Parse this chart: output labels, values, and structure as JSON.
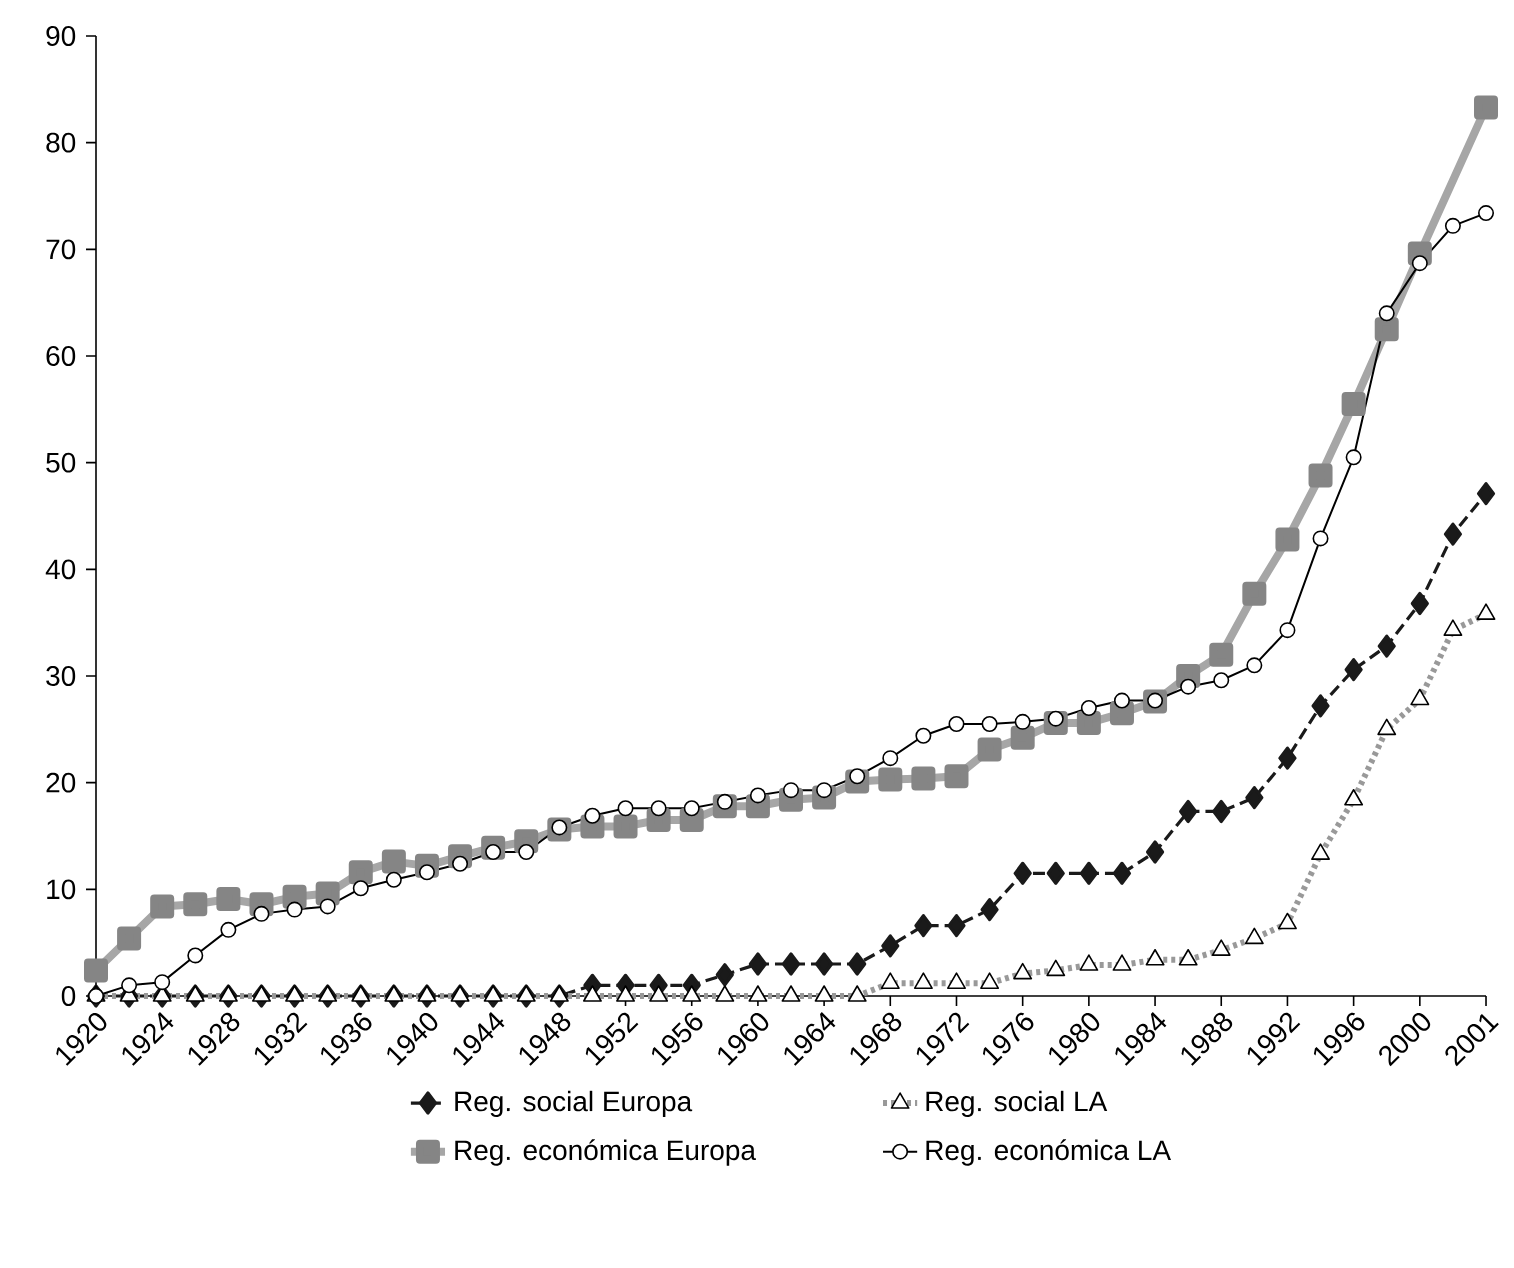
{
  "chart_data": {
    "type": "line",
    "categories": [
      "1920",
      null,
      "1924",
      null,
      "1928",
      null,
      "1932",
      null,
      "1936",
      null,
      "1940",
      null,
      "1944",
      null,
      "1948",
      null,
      "1952",
      null,
      "1956",
      null,
      "1960",
      null,
      "1964",
      null,
      "1968",
      null,
      "1972",
      null,
      "1976",
      null,
      "1980",
      null,
      "1984",
      null,
      "1988",
      null,
      "1992",
      null,
      "1996",
      null,
      "2000",
      null,
      "2001"
    ],
    "ylim": [
      0,
      90
    ],
    "yticks": [
      0,
      10,
      20,
      30,
      40,
      50,
      60,
      70,
      80,
      90
    ],
    "legend": "bottom",
    "series": [
      {
        "name": "Reg. social Europa",
        "color": "#1a1a1a",
        "marker": "diamond",
        "line_style": "dashed",
        "values": [
          0,
          0,
          0,
          0,
          0,
          0,
          0,
          0,
          0,
          0,
          0,
          0,
          0,
          0,
          0,
          1,
          1,
          1,
          1,
          2,
          3,
          3,
          3,
          3,
          4.7,
          6.6,
          6.6,
          8.1,
          11.5,
          11.5,
          11.5,
          11.5,
          13.5,
          17.3,
          17.3,
          18.6,
          22.3,
          27.2,
          30.6,
          32.8,
          36.8,
          43.3,
          47.1
        ]
      },
      {
        "name": "Reg. social LA",
        "color": "#999999",
        "marker": "triangle",
        "line_style": "dotted",
        "values": [
          0,
          0,
          0,
          0,
          0,
          0,
          0,
          0,
          0,
          0,
          0,
          0,
          0,
          0,
          0,
          0,
          0,
          0,
          0,
          0,
          0,
          0,
          0,
          0,
          1.2,
          1.2,
          1.2,
          1.2,
          2.1,
          2.4,
          2.9,
          2.9,
          3.4,
          3.4,
          4.3,
          5.4,
          6.8,
          13.3,
          18.4,
          25,
          27.8,
          34.3,
          35.8
        ]
      },
      {
        "name": "Reg. económica Europa",
        "color": "#a6a6a6",
        "marker": "square",
        "line_style": "solid",
        "values": [
          2.4,
          5.4,
          8.4,
          8.6,
          9.1,
          8.6,
          9.3,
          9.6,
          11.6,
          12.6,
          12.2,
          13.1,
          13.9,
          14.5,
          15.6,
          15.9,
          15.9,
          16.5,
          16.5,
          17.8,
          17.8,
          18.4,
          18.6,
          20.1,
          20.3,
          20.4,
          20.6,
          23.1,
          24.2,
          25.6,
          25.6,
          26.5,
          27.6,
          30,
          32,
          37.7,
          42.8,
          48.8,
          55.5,
          62.5,
          69.6,
          null,
          83.3
        ]
      },
      {
        "name": "Reg. económica LA",
        "color": "#000000",
        "marker": "circle",
        "line_style": "solid",
        "values": [
          0,
          1,
          1.3,
          3.8,
          6.2,
          7.7,
          8.1,
          8.4,
          10.1,
          10.9,
          11.6,
          12.4,
          13.5,
          13.5,
          15.8,
          16.9,
          17.6,
          17.6,
          17.6,
          18.2,
          18.8,
          19.3,
          19.3,
          20.6,
          22.3,
          24.4,
          25.5,
          25.5,
          25.7,
          26,
          27,
          27.7,
          27.7,
          29,
          29.6,
          31,
          34.3,
          42.9,
          50.5,
          64,
          68.7,
          72.2,
          73.4
        ]
      }
    ]
  }
}
